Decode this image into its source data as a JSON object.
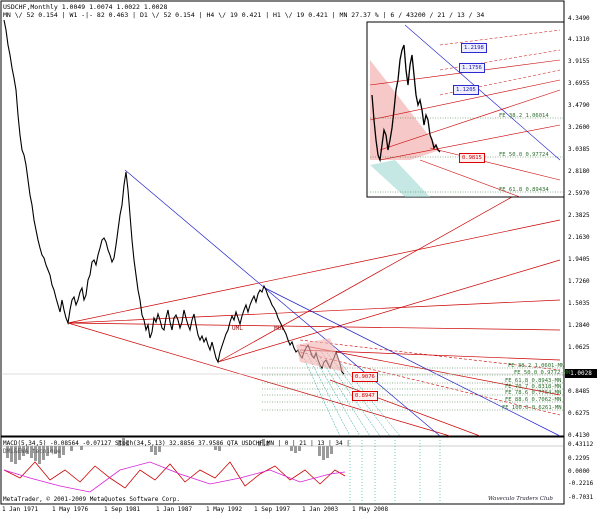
{
  "header": {
    "line1": "USDCHF,Monthly  1.0049 1.0074 1.0022 1.0028",
    "line2": "MN \\/ 52   0.154 | W1 -|- 82   0.463 | D1 \\/ 52   0.154 | H4 \\/ 19   0.421 | H1 \\/ 19   0.421 | MN   27.37 %  | 6 / 43200 / 21 / 13 / 34"
  },
  "current_price": "1.0028",
  "price_axis": [
    "4.3490",
    "4.1310",
    "3.9155",
    "3.6955",
    "3.4790",
    "3.2600",
    "3.0385",
    "2.8180",
    "2.5970",
    "2.3825",
    "2.1630",
    "1.9405",
    "1.7260",
    "1.5035",
    "1.2840",
    "1.0625",
    "0.8485",
    "0.6275",
    "0.4130"
  ],
  "macd_axis": [
    "0.43112",
    "0.2295",
    "0.0000",
    "-0.2216",
    "-0.7031"
  ],
  "time_axis": [
    "1 Jan 1971",
    "1 May 1976",
    "1 Sep 1981",
    "1 Jan 1987",
    "1 May 1992",
    "1 Sep 1997",
    "1 Jan 2003",
    "1 May 2008"
  ],
  "fibo_levels": [
    "FE 38.2 1.0601-MN",
    "FE 50.0 0.9772-MN",
    "FE 61.8 0.8943-MN",
    "FE 70.7 0.8318-MN",
    "FE 78.6 0.7764-MN",
    "FE 88.6 0.7062-MN",
    "FE 100.0 0.6261-MN"
  ],
  "inset": {
    "boxes": [
      "1.2198",
      "1.1756",
      "1.1205"
    ],
    "red_box": "0.9815",
    "fibo": [
      "FE 38.2 1.06014",
      "FE 50.0 0.97724",
      "FE 61.8 0.89434"
    ]
  },
  "main_boxes": [
    "0.9076",
    "0.8947"
  ],
  "wave_labels": [
    "UML",
    "MUL"
  ],
  "indicator": {
    "macd": "MACD(5,34,5) -0.08564 -0.07127",
    "stoch": "Stoch(34,5,13) 32.8856 37.9586",
    "qta": "QTA USDCHF,MN | 0 | 21 | 13 | 34 |",
    "name": "DML&EWA tecnique"
  },
  "footer": {
    "copyright": "MetaTrader, © 2001-2009 MetaQuotes Software Corp.",
    "signature": "Waveculo Traders Club"
  },
  "colors": {
    "price": "#000000",
    "channel_red": "#cc0000",
    "channel_blue": "#2222cc",
    "fibo_green": "#2a6e2a",
    "fan_teal": "#1aa59a",
    "stoch_magenta": "#d81fd8"
  }
}
